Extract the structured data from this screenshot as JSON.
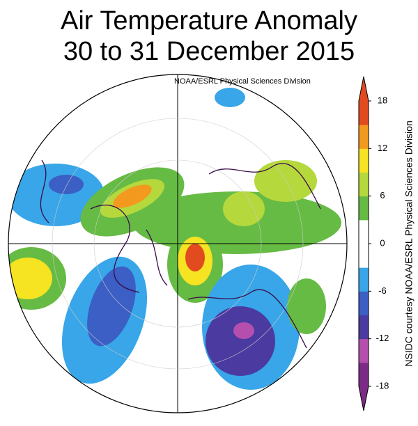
{
  "title": [
    "Air Temperature Anomaly",
    "30 to 31 December 2015"
  ],
  "map_credit": "NOAA/ESRL Physical Sciences Division",
  "side_credit": "NSIDC courtesy NOAA/ESRL Physical Sciences Division",
  "colorbar": {
    "lim": [
      -18,
      18
    ],
    "ticks": [
      -18,
      -12,
      -6,
      0,
      6,
      12,
      18
    ],
    "colors": [
      "#7b2a86",
      "#b54fae",
      "#4b3aa0",
      "#3b5fc4",
      "#38a6e8",
      "#ffffff",
      "#ffffff",
      "#66bb44",
      "#b5d83c",
      "#f6e321",
      "#f39a1e",
      "#e24b1f"
    ]
  }
}
